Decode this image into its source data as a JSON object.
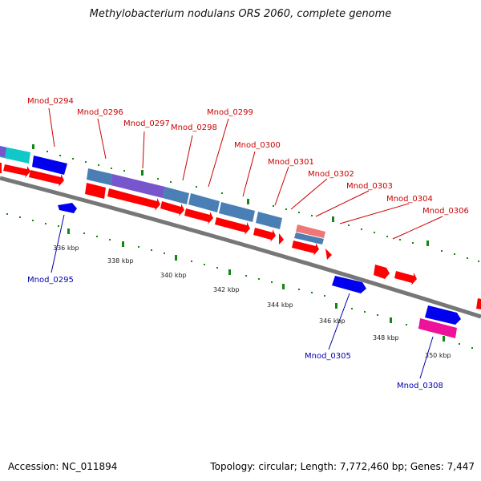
{
  "title": "Methylobacterium nodulans ORS 2060, complete genome",
  "footer": {
    "accession": "Accession: NC_011894",
    "topology": "Topology: circular; Length: 7,772,460 bp; Genes: 7,447"
  },
  "colors": {
    "gene_red": "#ff0000",
    "gene_blue": "#0000ee",
    "steel_blue": "#4a7fb5",
    "purple": "#7755cc",
    "cyan": "#11c8c8",
    "pink": "#ee1199",
    "salmon": "#ee7777",
    "tick_green": "#118811",
    "label_red": "#cc0000",
    "label_blue": "#0000aa"
  },
  "gene_labels_outer": [
    "Mnod_0294",
    "Mnod_0296",
    "Mnod_0297",
    "Mnod_0298",
    "Mnod_0299",
    "Mnod_0300",
    "Mnod_0301",
    "Mnod_0302",
    "Mnod_0303",
    "Mnod_0304",
    "Mnod_0306"
  ],
  "gene_labels_inner": [
    "Mnod_0295",
    "Mnod_0305",
    "Mnod_0308"
  ],
  "kbp_labels": [
    "336 kbp",
    "338 kbp",
    "340 kbp",
    "342 kbp",
    "344 kbp",
    "346 kbp",
    "348 kbp",
    "350 kbp"
  ]
}
